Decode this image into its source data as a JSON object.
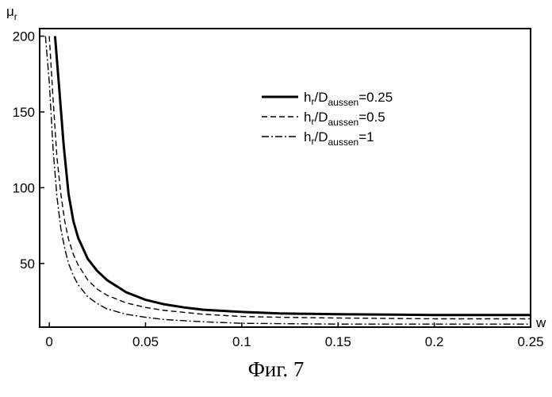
{
  "caption": "Фиг. 7",
  "chart_data": {
    "type": "line",
    "title": "",
    "xlabel": "w",
    "ylabel": {
      "main": "μ",
      "sub": "r"
    },
    "xlim": [
      -0.005,
      0.25
    ],
    "ylim": [
      8,
      205
    ],
    "xticks": [
      0,
      0.05,
      0.1,
      0.15,
      0.2,
      0.25
    ],
    "xtick_labels": [
      "0",
      "0.05",
      "0.1",
      "0.15",
      "0.2",
      "0.25"
    ],
    "yticks": [
      50,
      100,
      150,
      200
    ],
    "ytick_labels": [
      "50",
      "100",
      "150",
      "200"
    ],
    "grid": false,
    "legend_position": "top-right",
    "series": [
      {
        "name": {
          "h": "h",
          "r": "r",
          "sep": "/",
          "D": "D",
          "sub": "aussen",
          "val": "=0.25"
        },
        "style": "solid",
        "x": [
          0.003,
          0.005,
          0.0075,
          0.01,
          0.0125,
          0.015,
          0.02,
          0.025,
          0.03,
          0.04,
          0.05,
          0.06,
          0.07,
          0.08,
          0.1,
          0.12,
          0.15,
          0.2,
          0.25
        ],
        "y": [
          200,
          168,
          128,
          96,
          78,
          67,
          53,
          45,
          39,
          31,
          26,
          23,
          21,
          19.5,
          18,
          17,
          16.5,
          16,
          16
        ]
      },
      {
        "name": {
          "h": "h",
          "r": "r",
          "sep": "/",
          "D": "D",
          "sub": "aussen",
          "val": "=0.5"
        },
        "style": "dashed",
        "x": [
          0.0,
          0.002,
          0.004,
          0.006,
          0.008,
          0.01,
          0.0125,
          0.015,
          0.02,
          0.025,
          0.03,
          0.04,
          0.05,
          0.06,
          0.08,
          0.1,
          0.12,
          0.15,
          0.2,
          0.25
        ],
        "y": [
          200,
          158,
          120,
          96,
          78,
          66,
          56,
          49,
          39,
          33,
          29,
          24,
          21,
          19,
          16.5,
          15,
          14.5,
          14,
          13.5,
          13.5
        ]
      },
      {
        "name": {
          "h": "h",
          "r": "r",
          "sep": "/",
          "D": "D",
          "sub": "aussen",
          "val": "=1"
        },
        "style": "dash-dot",
        "x": [
          -0.002,
          0.0,
          0.002,
          0.004,
          0.006,
          0.008,
          0.01,
          0.0125,
          0.015,
          0.02,
          0.025,
          0.03,
          0.04,
          0.05,
          0.06,
          0.08,
          0.1,
          0.15,
          0.2,
          0.25
        ],
        "y": [
          200,
          170,
          125,
          94,
          73,
          60,
          50,
          42,
          36,
          28,
          23.5,
          20,
          16.5,
          14.5,
          13,
          11.5,
          10.5,
          10,
          10,
          10
        ]
      }
    ]
  }
}
